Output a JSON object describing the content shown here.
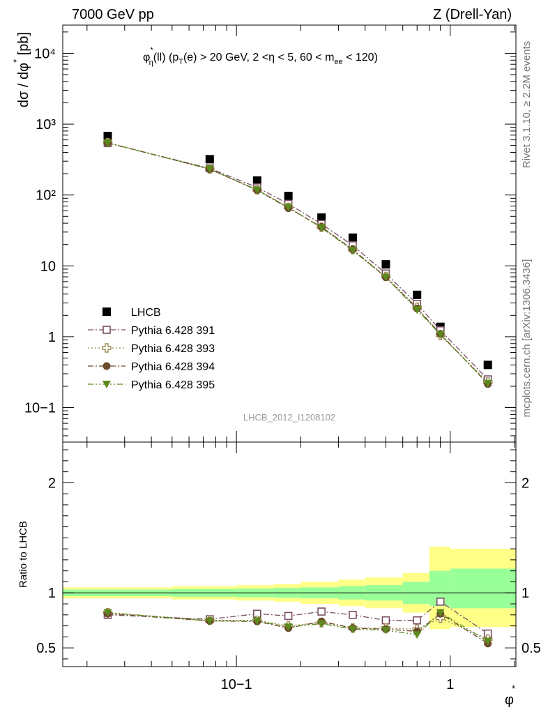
{
  "header": {
    "left": "7000 GeV pp",
    "right": "Z (Drell-Yan)"
  },
  "side_labels": {
    "rivet": "Rivet 3.1.10, ≥ 2.2M events",
    "mcplots": "mcplots.cern.ch [arXiv:1306.3436]"
  },
  "watermark": "LHCB_2012_I1208102",
  "chart_data": [
    {
      "type": "scatter",
      "title": "φ*η(ll) (pT(e) > 20 GeV, 2 <η < 5, 60 < mee < 120)",
      "title_parts": {
        "phi": "φ",
        "star": "*",
        "eta_sub": "η",
        "ll": "(ll) (p",
        "T_sub": "T",
        "mid": "(e) > 20 GeV, 2 <η < 5, 60 < m",
        "ee_sub": "ee",
        "end": " < 120)"
      },
      "ylabel": "dσ / dφ * [pb]",
      "ylabel_parts": {
        "main": "dσ / dφ",
        "star": "*",
        "unit": " [pb]"
      },
      "x_scale": "log",
      "y_scale": "log",
      "xlim": [
        0.0154,
        2.03
      ],
      "ylim": [
        0.0326,
        25000
      ],
      "y_tick_labels": [
        "10−1",
        "1",
        "10",
        "10²",
        "10³",
        "10⁴"
      ],
      "legend_placement": "lower-left",
      "x": [
        0.025,
        0.075,
        0.125,
        0.175,
        0.25,
        0.35,
        0.5,
        0.7,
        0.9,
        1.5
      ],
      "series": [
        {
          "name": "LHCB",
          "color": "#000000",
          "marker": "filled-square",
          "line": "none",
          "values": [
            680,
            320,
            160,
            97,
            48,
            25,
            10.5,
            3.9,
            1.38,
            0.4
          ]
        },
        {
          "name": "Pythia 6.428 391",
          "color": "#7a4e63",
          "marker": "open-square",
          "line": "dash-dot",
          "values": [
            540,
            238,
            128,
            75,
            39,
            19.5,
            7.8,
            2.9,
            1.23,
            0.25
          ]
        },
        {
          "name": "Pythia 6.428 393",
          "color": "#9a8a50",
          "marker": "open-cross",
          "line": "dotted",
          "values": [
            550,
            233,
            119,
            67,
            35,
            17,
            7.1,
            2.6,
            1.05,
            0.23
          ]
        },
        {
          "name": "Pythia 6.428 394",
          "color": "#6b4a2b",
          "marker": "filled-circle",
          "line": "dash-dot",
          "values": [
            545,
            232,
            117,
            65.5,
            35.5,
            17,
            6.9,
            2.5,
            1.1,
            0.215
          ]
        },
        {
          "name": "Pythia 6.428 395",
          "color": "#5b8a1e",
          "marker": "filled-triangle-down",
          "line": "dash-dot-dot",
          "values": [
            545,
            233,
            118,
            67,
            34.5,
            16.5,
            6.9,
            2.4,
            1.07,
            0.22
          ]
        }
      ]
    },
    {
      "type": "line",
      "ylabel": "Ratio to LHCB",
      "xlabel": "φ *",
      "xlabel_parts": {
        "phi": "φ",
        "star": "*"
      },
      "x_scale": "log",
      "xlim": [
        0.0154,
        2.03
      ],
      "ylim": [
        0.33,
        2.37
      ],
      "y_ticks_labeled": [
        0.5,
        1,
        2
      ],
      "y_tick_labels": [
        "0.5",
        "1",
        "2"
      ],
      "x_tick_labels": [
        "10−1",
        "1"
      ],
      "bands": {
        "edges": [
          0.0154,
          0.05,
          0.1,
          0.15,
          0.2,
          0.3,
          0.4,
          0.6,
          0.8,
          1.0,
          2.03
        ],
        "inner": [
          [
            0.97,
            1.03
          ],
          [
            0.965,
            1.035
          ],
          [
            0.96,
            1.04
          ],
          [
            0.955,
            1.045
          ],
          [
            0.95,
            1.05
          ],
          [
            0.94,
            1.06
          ],
          [
            0.93,
            1.07
          ],
          [
            0.9,
            1.1
          ],
          [
            0.88,
            1.2
          ],
          [
            0.86,
            1.22
          ]
        ],
        "outer": [
          [
            0.95,
            1.05
          ],
          [
            0.94,
            1.06
          ],
          [
            0.93,
            1.07
          ],
          [
            0.92,
            1.08
          ],
          [
            0.9,
            1.1
          ],
          [
            0.88,
            1.12
          ],
          [
            0.86,
            1.14
          ],
          [
            0.82,
            1.18
          ],
          [
            0.67,
            1.42
          ],
          [
            0.69,
            1.4
          ]
        ],
        "inner_color": "#99ff99",
        "outer_color": "#ffff88"
      },
      "x": [
        0.025,
        0.075,
        0.125,
        0.175,
        0.25,
        0.35,
        0.5,
        0.7,
        0.9,
        1.5
      ],
      "series": [
        {
          "name": "Pythia 6.428 391",
          "values": [
            0.8,
            0.76,
            0.81,
            0.79,
            0.83,
            0.8,
            0.75,
            0.75,
            0.92,
            0.63
          ],
          "errors": [
            0.01,
            0.01,
            0.01,
            0.01,
            0.01,
            0.01,
            0.01,
            0.015,
            0.03,
            0.02
          ]
        },
        {
          "name": "Pythia 6.428 393",
          "values": [
            0.82,
            0.75,
            0.75,
            0.7,
            0.73,
            0.68,
            0.68,
            0.67,
            0.77,
            0.58
          ],
          "errors": [
            0.01,
            0.01,
            0.01,
            0.01,
            0.01,
            0.01,
            0.01,
            0.015,
            0.03,
            0.02
          ]
        },
        {
          "name": "Pythia 6.428 394",
          "values": [
            0.81,
            0.745,
            0.74,
            0.68,
            0.74,
            0.68,
            0.67,
            0.65,
            0.81,
            0.54
          ],
          "errors": [
            0.01,
            0.01,
            0.01,
            0.01,
            0.01,
            0.01,
            0.01,
            0.015,
            0.03,
            0.02
          ]
        },
        {
          "name": "Pythia 6.428 395",
          "values": [
            0.82,
            0.745,
            0.745,
            0.69,
            0.72,
            0.67,
            0.66,
            0.62,
            0.82,
            0.56
          ],
          "errors": [
            0.01,
            0.01,
            0.01,
            0.01,
            0.01,
            0.01,
            0.01,
            0.02,
            0.03,
            0.02
          ]
        }
      ]
    }
  ]
}
